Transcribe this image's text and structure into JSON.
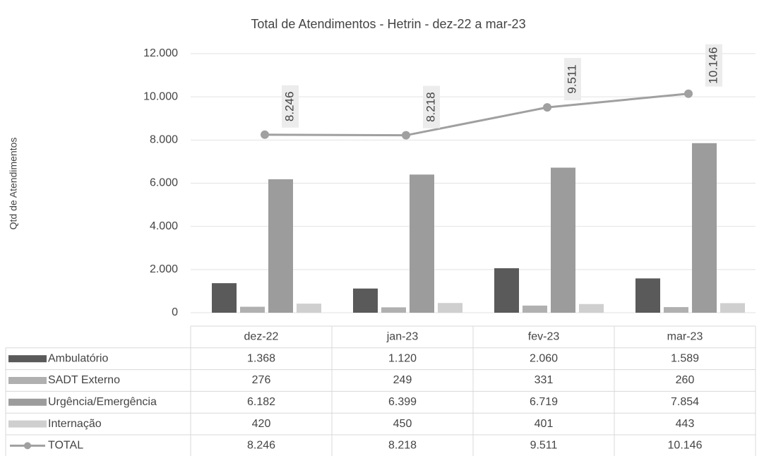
{
  "chart_data": {
    "type": "bar",
    "title": "Total de Atendimentos - Hetrin - dez-22 a mar-23",
    "ylabel": "Qtd de Atendimentos",
    "categories": [
      "dez-22",
      "jan-23",
      "fev-23",
      "mar-23"
    ],
    "series": [
      {
        "name": "Ambulatório",
        "color": "#5a5a5a",
        "values": [
          1368,
          1120,
          2060,
          1589
        ],
        "value_labels": [
          "1.368",
          "1.120",
          "2.060",
          "1.589"
        ]
      },
      {
        "name": "SADT Externo",
        "color": "#b0b0b0",
        "values": [
          276,
          249,
          331,
          260
        ],
        "value_labels": [
          "276",
          "249",
          "331",
          "260"
        ]
      },
      {
        "name": "Urgência/Emergência",
        "color": "#9c9c9c",
        "values": [
          6182,
          6399,
          6719,
          7854
        ],
        "value_labels": [
          "6.182",
          "6.399",
          "6.719",
          "7.854"
        ]
      },
      {
        "name": "Internação",
        "color": "#cfcfcf",
        "values": [
          420,
          450,
          401,
          443
        ],
        "value_labels": [
          "420",
          "450",
          "401",
          "443"
        ]
      },
      {
        "name": "TOTAL",
        "type": "line",
        "color": "#a0a0a0",
        "values": [
          8246,
          8218,
          9511,
          10146
        ],
        "value_labels": [
          "8.246",
          "8.218",
          "9.511",
          "10.146"
        ]
      }
    ],
    "ylim": [
      0,
      12000
    ],
    "yticks": [
      0,
      {
        "value": 2000,
        "label": "2.000"
      },
      {
        "value": 4000,
        "label": "4.000"
      },
      {
        "value": 6000,
        "label": "6.000"
      },
      {
        "value": 8000,
        "label": "8.000"
      },
      {
        "value": 10000,
        "label": "10.000"
      },
      {
        "value": 12000,
        "label": "12.000"
      }
    ],
    "grid": true,
    "data_table": true
  }
}
